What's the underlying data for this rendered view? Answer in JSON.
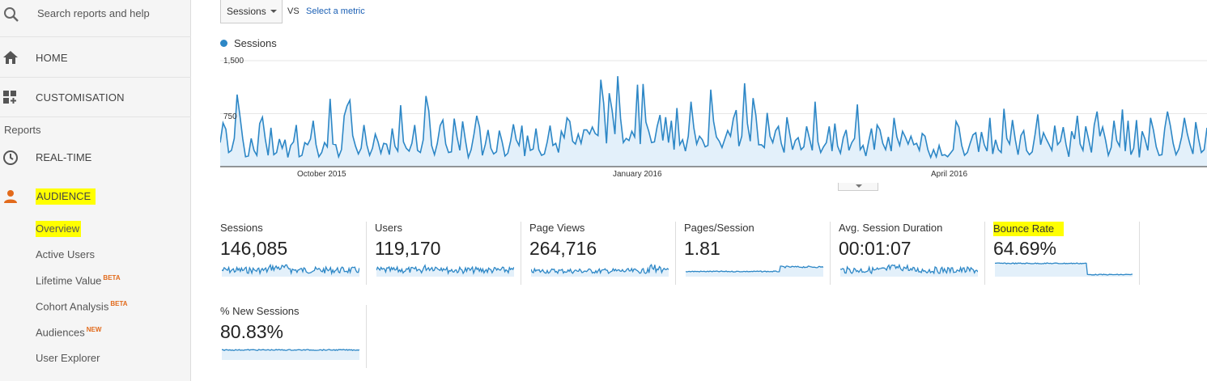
{
  "sidebar": {
    "search_label": "Search reports and help",
    "home": "HOME",
    "customisation": "CUSTOMISATION",
    "reports_heading": "Reports",
    "realtime": "REAL-TIME",
    "audience": "AUDIENCE",
    "audience_items": [
      {
        "label": "Overview",
        "badge": ""
      },
      {
        "label": "Active Users",
        "badge": ""
      },
      {
        "label": "Lifetime Value",
        "badge": "BETA"
      },
      {
        "label": "Cohort Analysis",
        "badge": "BETA"
      },
      {
        "label": "Audiences",
        "badge": "NEW"
      },
      {
        "label": "User Explorer",
        "badge": ""
      }
    ],
    "highlight_color": "#ffff00",
    "icons": [
      "search-icon",
      "home-icon",
      "dashboard-icon",
      "clock-icon",
      "person-icon"
    ]
  },
  "toolbar": {
    "metric_select_value": "Sessions",
    "vs_label": "VS",
    "select_metric_link": "Select a metric"
  },
  "chart_data": {
    "type": "area",
    "legend": [
      "Sessions"
    ],
    "series_color": "#2d87c6",
    "fill_color": "#e3f0fa",
    "yticks": [
      "1,500",
      "750"
    ],
    "ylim": [
      0,
      1500
    ],
    "x_tick_labels": [
      "October 2015",
      "January 2016",
      "April 2016"
    ],
    "series": [
      {
        "name": "Sessions",
        "values": [
          340,
          620,
          530,
          200,
          230,
          400,
          1020,
          720,
          390,
          140,
          150,
          400,
          230,
          160,
          610,
          700,
          390,
          160,
          550,
          170,
          200,
          390,
          260,
          380,
          130,
          300,
          350,
          590,
          140,
          160,
          340,
          310,
          390,
          650,
          310,
          140,
          200,
          340,
          280,
          960,
          320,
          310,
          140,
          240,
          720,
          860,
          940,
          440,
          290,
          180,
          260,
          590,
          310,
          160,
          260,
          460,
          350,
          190,
          330,
          320,
          170,
          540,
          290,
          220,
          870,
          350,
          260,
          220,
          330,
          590,
          230,
          200,
          380,
          1000,
          790,
          300,
          170,
          330,
          580,
          660,
          320,
          200,
          210,
          680,
          420,
          230,
          640,
          370,
          130,
          240,
          460,
          720,
          560,
          160,
          310,
          520,
          260,
          180,
          210,
          510,
          350,
          150,
          190,
          360,
          600,
          380,
          300,
          580,
          150,
          440,
          230,
          250,
          540,
          240,
          160,
          180,
          350,
          580,
          300,
          330,
          200,
          500,
          410,
          690,
          640,
          360,
          320,
          460,
          330,
          520,
          520,
          460,
          560,
          470,
          440,
          1230,
          900,
          330,
          1040,
          800,
          460,
          1280,
          680,
          340,
          400,
          370,
          500,
          420,
          1160,
          320,
          1170,
          630,
          500,
          340,
          350,
          570,
          730,
          370,
          700,
          340,
          650,
          240,
          830,
          310,
          380,
          220,
          430,
          920,
          550,
          320,
          430,
          380,
          280,
          300,
          1090,
          640,
          420,
          360,
          270,
          390,
          510,
          430,
          680,
          800,
          290,
          430,
          1180,
          610,
          360,
          970,
          730,
          310,
          310,
          270,
          760,
          430,
          340,
          510,
          570,
          330,
          200,
          700,
          470,
          240,
          370,
          410,
          240,
          280,
          570,
          400,
          230,
          920,
          350,
          200,
          280,
          340,
          570,
          220,
          610,
          290,
          190,
          410,
          520,
          230,
          340,
          400,
          880,
          240,
          300,
          150,
          360,
          540,
          240,
          590,
          520,
          330,
          240,
          420,
          220,
          690,
          420,
          300,
          500,
          420,
          320,
          430,
          310,
          330,
          230,
          470,
          430,
          240,
          130,
          240,
          140,
          300,
          160,
          170,
          140,
          190,
          240,
          640,
          560,
          300,
          160,
          200,
          330,
          450,
          480,
          210,
          490,
          310,
          220,
          690,
          180,
          380,
          240,
          200,
          820,
          400,
          320,
          660,
          380,
          170,
          440,
          510,
          230,
          170,
          210,
          450,
          740,
          310,
          480,
          390,
          310,
          230,
          580,
          310,
          360,
          560,
          310,
          140,
          500,
          390,
          720,
          320,
          230,
          570,
          390,
          200,
          590,
          780,
          430,
          560,
          380,
          160,
          270,
          650,
          370,
          290,
          810,
          220,
          650,
          170,
          260,
          660,
          130,
          500,
          390,
          230,
          690,
          520,
          280,
          160,
          170,
          540,
          780,
          580,
          330,
          170,
          250,
          420,
          690,
          470,
          310,
          180,
          630,
          390,
          200,
          240,
          550
        ]
      }
    ]
  },
  "tiles": [
    {
      "label": "Sessions",
      "value": "146,085"
    },
    {
      "label": "Users",
      "value": "119,170"
    },
    {
      "label": "Page Views",
      "value": "264,716"
    },
    {
      "label": "Pages/Session",
      "value": "1.81"
    },
    {
      "label": "Avg. Session Duration",
      "value": "00:01:07"
    },
    {
      "label": "Bounce Rate",
      "value": "64.69%"
    },
    {
      "label": "% New Sessions",
      "value": "80.83%"
    }
  ]
}
